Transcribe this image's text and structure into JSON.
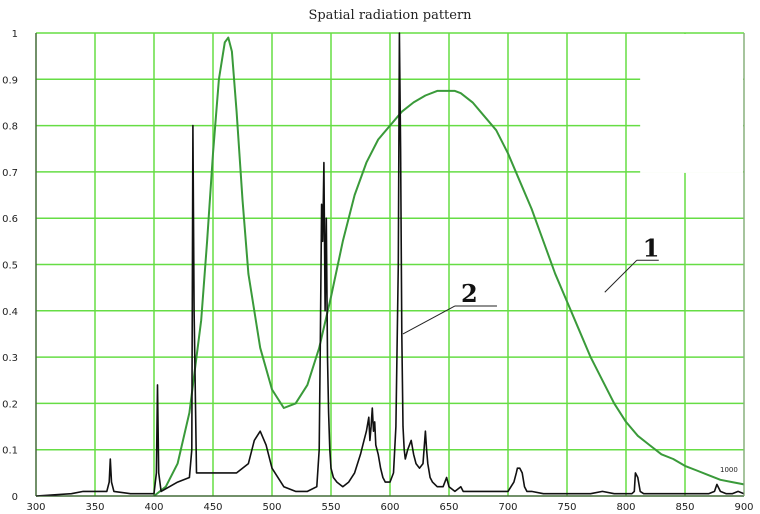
{
  "chart_data": {
    "type": "line",
    "title": "Spatial radiation pattern",
    "xlabel": "",
    "ylabel": "",
    "xlim": [
      300,
      900
    ],
    "ylim": [
      0,
      1
    ],
    "x_ticks": [
      "300",
      "350",
      "400",
      "450",
      "500",
      "550",
      "600",
      "650",
      "700",
      "750",
      "800",
      "850",
      "900"
    ],
    "y_ticks": [
      "0",
      "0.1",
      "0.2",
      "0.3",
      "0.4",
      "0.5",
      "0.6",
      "0.7",
      "0.8",
      "0.9",
      "1"
    ],
    "grid": true,
    "grid_color": "#66dd44",
    "series": [
      {
        "color": "#3a9a3a",
        "x": [
          400,
          410,
          420,
          430,
          440,
          445,
          450,
          455,
          460,
          463,
          466,
          470,
          475,
          480,
          490,
          500,
          510,
          520,
          530,
          540,
          550,
          560,
          570,
          580,
          590,
          600,
          610,
          620,
          630,
          640,
          650,
          655,
          660,
          670,
          680,
          690,
          700,
          710,
          720,
          730,
          740,
          750,
          760,
          770,
          780,
          790,
          800,
          810,
          820,
          830,
          840,
          850,
          860,
          870,
          880,
          890,
          900
        ],
        "y": [
          0,
          0.02,
          0.07,
          0.18,
          0.38,
          0.55,
          0.74,
          0.9,
          0.98,
          0.99,
          0.96,
          0.83,
          0.64,
          0.48,
          0.32,
          0.23,
          0.19,
          0.2,
          0.24,
          0.32,
          0.43,
          0.55,
          0.65,
          0.72,
          0.77,
          0.8,
          0.83,
          0.85,
          0.865,
          0.875,
          0.875,
          0.875,
          0.87,
          0.85,
          0.82,
          0.79,
          0.74,
          0.68,
          0.62,
          0.55,
          0.48,
          0.42,
          0.36,
          0.3,
          0.25,
          0.2,
          0.16,
          0.13,
          0.11,
          0.09,
          0.08,
          0.065,
          0.055,
          0.045,
          0.035,
          0.03,
          0.025
        ]
      },
      {
        "color": "#111111",
        "x": [
          300,
          330,
          340,
          350,
          360,
          362,
          363,
          364,
          366,
          380,
          400,
          402,
          403,
          404,
          406,
          420,
          430,
          432,
          433,
          434,
          436,
          440,
          450,
          460,
          470,
          480,
          485,
          490,
          495,
          500,
          510,
          520,
          530,
          538,
          540,
          541,
          542,
          543,
          544,
          545,
          546,
          547,
          548,
          549,
          550,
          552,
          555,
          560,
          565,
          570,
          575,
          578,
          580,
          582,
          583,
          584,
          585,
          586,
          587,
          588,
          590,
          592,
          594,
          596,
          600,
          603,
          605,
          607,
          608,
          609,
          610,
          611,
          612,
          613,
          615,
          618,
          620,
          622,
          625,
          628,
          630,
          631,
          632,
          634,
          636,
          640,
          645,
          648,
          650,
          655,
          660,
          662,
          665,
          670,
          680,
          690,
          700,
          705,
          707,
          708,
          710,
          712,
          714,
          716,
          720,
          730,
          740,
          750,
          760,
          770,
          780,
          790,
          800,
          805,
          807,
          808,
          810,
          812,
          815,
          820,
          830,
          840,
          850,
          860,
          870,
          875,
          877,
          880,
          885,
          890,
          895,
          900
        ],
        "y": [
          0,
          0.005,
          0.01,
          0.01,
          0.01,
          0.03,
          0.08,
          0.03,
          0.01,
          0.005,
          0.005,
          0.05,
          0.24,
          0.05,
          0.01,
          0.03,
          0.04,
          0.1,
          0.8,
          0.4,
          0.05,
          0.05,
          0.05,
          0.05,
          0.05,
          0.07,
          0.12,
          0.14,
          0.11,
          0.06,
          0.02,
          0.01,
          0.01,
          0.02,
          0.1,
          0.35,
          0.63,
          0.55,
          0.72,
          0.4,
          0.6,
          0.3,
          0.18,
          0.1,
          0.06,
          0.04,
          0.03,
          0.02,
          0.03,
          0.05,
          0.09,
          0.12,
          0.14,
          0.17,
          0.12,
          0.15,
          0.19,
          0.14,
          0.16,
          0.11,
          0.09,
          0.06,
          0.04,
          0.03,
          0.03,
          0.05,
          0.15,
          0.5,
          1.0,
          0.75,
          0.35,
          0.15,
          0.1,
          0.08,
          0.1,
          0.12,
          0.09,
          0.07,
          0.06,
          0.07,
          0.14,
          0.1,
          0.07,
          0.04,
          0.03,
          0.02,
          0.02,
          0.04,
          0.02,
          0.01,
          0.02,
          0.01,
          0.01,
          0.01,
          0.01,
          0.01,
          0.01,
          0.03,
          0.05,
          0.06,
          0.06,
          0.05,
          0.02,
          0.01,
          0.01,
          0.005,
          0.005,
          0.005,
          0.005,
          0.005,
          0.01,
          0.005,
          0.005,
          0.005,
          0.01,
          0.05,
          0.04,
          0.01,
          0.005,
          0.005,
          0.005,
          0.005,
          0.005,
          0.005,
          0.005,
          0.01,
          0.025,
          0.01,
          0.005,
          0.005,
          0.01,
          0.005
        ]
      }
    ],
    "annotations": [
      {
        "text": "1",
        "target_x": 782,
        "target_y": 0.44
      },
      {
        "text": "2",
        "target_x": 611,
        "target_y": 0.35
      }
    ],
    "corner_label": "1000"
  }
}
